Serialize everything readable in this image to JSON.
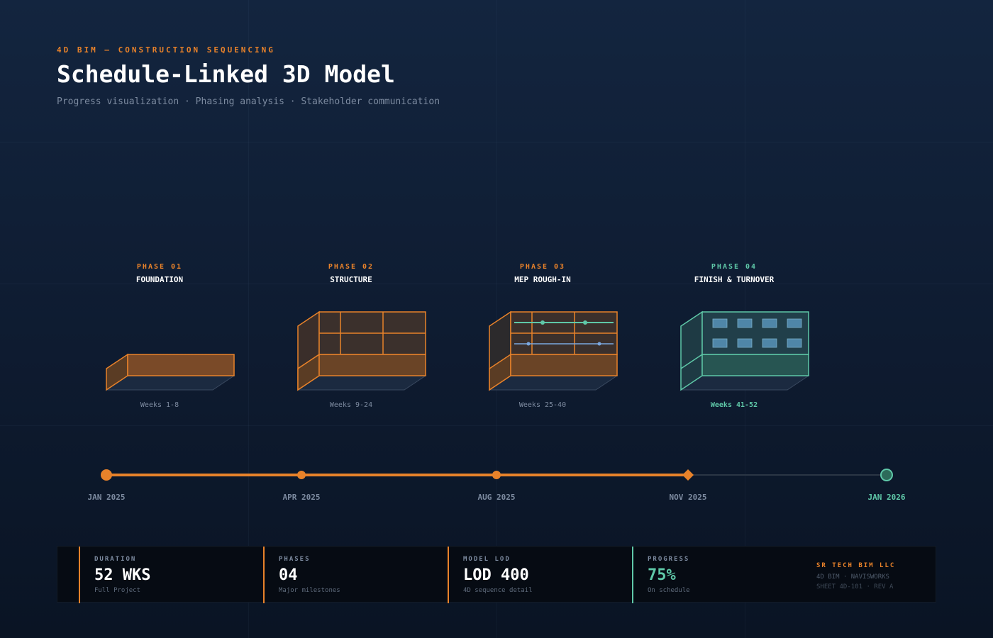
{
  "header": {
    "eyebrow": "4D BIM — CONSTRUCTION SEQUENCING",
    "title": "Schedule-Linked 3D Model",
    "subtitle": "Progress visualization · Phasing analysis · Stakeholder communication"
  },
  "phases": [
    {
      "number": "PHASE 01",
      "name": "FOUNDATION",
      "weeks": "Weeks 1-8"
    },
    {
      "number": "PHASE 02",
      "name": "STRUCTURE",
      "weeks": "Weeks 9-24"
    },
    {
      "number": "PHASE 03",
      "name": "MEP ROUGH-IN",
      "weeks": "Weeks 25-40"
    },
    {
      "number": "PHASE 04",
      "name": "FINISH & TURNOVER",
      "weeks": "Weeks 41-52"
    }
  ],
  "timeline": {
    "dates": [
      "JAN 2025",
      "APR 2025",
      "AUG 2025",
      "NOV 2025",
      "JAN 2026"
    ],
    "current_index": 3
  },
  "metrics": [
    {
      "label": "DURATION",
      "value": "52 WKS",
      "note": "Full Project"
    },
    {
      "label": "PHASES",
      "value": "04",
      "note": "Major milestones"
    },
    {
      "label": "MODEL LOD",
      "value": "LOD 400",
      "note": "4D sequence detail"
    },
    {
      "label": "PROGRESS",
      "value": "75%",
      "note": "On schedule"
    }
  ],
  "brand": {
    "name": "SR TECH BIM LLC",
    "line1": "4D BIM · NAVISWORKS",
    "line2": "SHEET 4D-101 · REV A"
  },
  "colors": {
    "accent": "#e8822a",
    "complete": "#5fc8a8",
    "mep_blue": "#7aa7e0",
    "muted": "#7d8ba0"
  }
}
